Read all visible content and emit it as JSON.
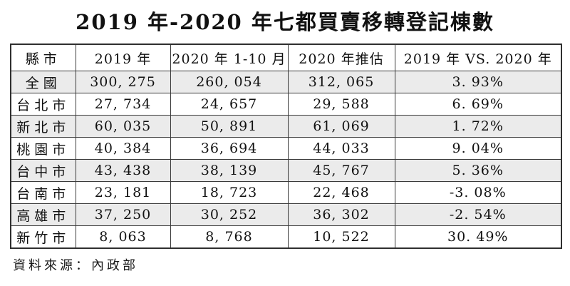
{
  "title": "2019 年-2020 年七都買賣移轉登記棟數",
  "source": "資料來源：內政部",
  "colors": {
    "background": "#ffffff",
    "row_alt": "#ebebeb",
    "border": "#2f2f2f",
    "text": "#111111"
  },
  "chart_data": {
    "type": "table",
    "title": "2019 年-2020 年七都買賣移轉登記棟數",
    "columns": [
      "縣市",
      "2019 年",
      "2020 年 1-10 月",
      "2020 年推估",
      "2019 年 VS. 2020 年"
    ],
    "rows": [
      [
        "全國",
        "300, 275",
        "260, 054",
        "312, 065",
        "3. 93%"
      ],
      [
        "台北市",
        "27, 734",
        "24, 657",
        "29, 588",
        "6. 69%"
      ],
      [
        "新北市",
        "60, 035",
        "50, 891",
        "61, 069",
        "1. 72%"
      ],
      [
        "桃園市",
        "40, 384",
        "36, 694",
        "44, 033",
        "9. 04%"
      ],
      [
        "台中市",
        "43, 438",
        "38, 139",
        "45, 767",
        "5. 36%"
      ],
      [
        "台南市",
        "23, 181",
        "18, 723",
        "22, 468",
        "-3. 08%"
      ],
      [
        "高雄市",
        "37, 250",
        "30, 252",
        "36, 302",
        "-2. 54%"
      ],
      [
        "新竹市",
        "8, 063",
        "8, 768",
        "10, 522",
        "30. 49%"
      ]
    ],
    "regions": [
      "全國",
      "台北市",
      "新北市",
      "桃園市",
      "台中市",
      "台南市",
      "高雄市",
      "新竹市"
    ],
    "series": [
      {
        "name": "2019 年",
        "values": [
          300275,
          27734,
          60035,
          40384,
          43438,
          23181,
          37250,
          8063
        ]
      },
      {
        "name": "2020 年 1-10 月",
        "values": [
          260054,
          24657,
          50891,
          36694,
          38139,
          18723,
          30252,
          8768
        ]
      },
      {
        "name": "2020 年推估",
        "values": [
          312065,
          29588,
          61069,
          44033,
          45767,
          22468,
          36302,
          10522
        ]
      },
      {
        "name": "2019 年 VS. 2020 年 (%)",
        "values": [
          3.93,
          6.69,
          1.72,
          9.04,
          5.36,
          -3.08,
          -2.54,
          30.49
        ]
      }
    ],
    "source": "資料來源：內政部",
    "layout": {
      "row_alternating_shading": true,
      "first_shaded_row": "全國"
    }
  }
}
